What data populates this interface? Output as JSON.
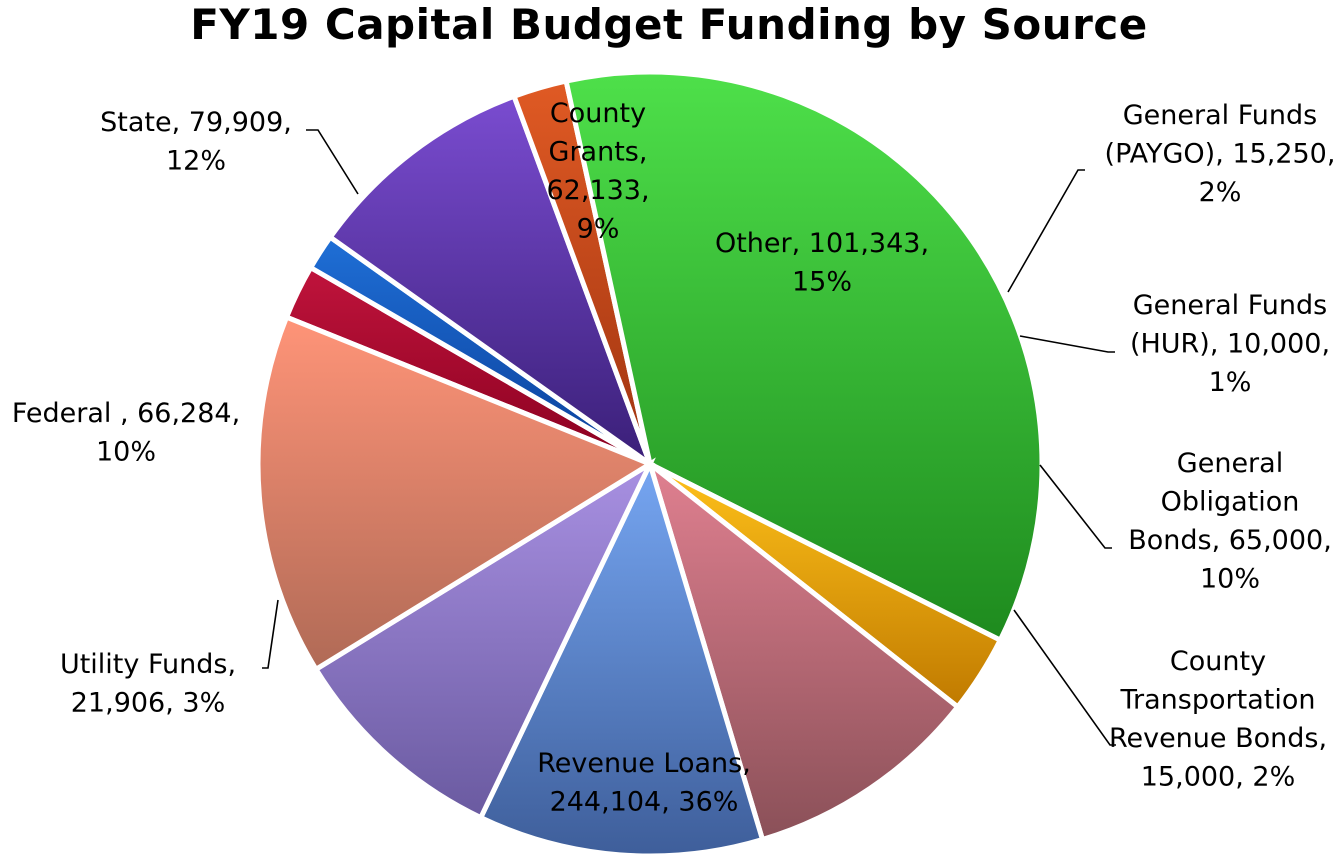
{
  "chart_data": {
    "type": "pie",
    "title": "FY19 Capital Budget Funding by Source",
    "slices": [
      {
        "name": "General Funds (PAYGO)",
        "value": 15250,
        "percent": "2%",
        "label_lines": [
          "General Funds",
          "(PAYGO), 15,250,",
          "2%"
        ],
        "color_light": "#c0143c",
        "color_dark": "#8a0020"
      },
      {
        "name": "General Funds (HUR)",
        "value": 10000,
        "percent": "1%",
        "label_lines": [
          "General Funds",
          "(HUR), 10,000,",
          "1%"
        ],
        "color_light": "#1f6fd6",
        "color_dark": "#0a3f9a"
      },
      {
        "name": "General Obligation Bonds",
        "value": 65000,
        "percent": "10%",
        "label_lines": [
          "General",
          "Obligation",
          "Bonds, 65,000,",
          "10%"
        ],
        "color_light": "#7a4cd0",
        "color_dark": "#3a1f78"
      },
      {
        "name": "County Transportation Revenue Bonds",
        "value": 15000,
        "percent": "2%",
        "label_lines": [
          "County",
          "Transportation",
          "Revenue Bonds,",
          "15,000, 2%"
        ],
        "color_light": "#e05a24",
        "color_dark": "#a03410"
      },
      {
        "name": "Revenue Loans",
        "value": 244104,
        "percent": "36%",
        "label_lines": [
          "Revenue Loans,",
          "244,104, 36%"
        ],
        "color_light": "#4ee04a",
        "color_dark": "#1e8a1e"
      },
      {
        "name": "Utility Funds",
        "value": 21906,
        "percent": "3%",
        "label_lines": [
          "Utility Funds,",
          "21,906, 3%"
        ],
        "color_light": "#ffc21a",
        "color_dark": "#c07a00"
      },
      {
        "name": "Federal",
        "value": 66284,
        "percent": "10%",
        "label_lines": [
          "Federal , 66,284,",
          "10%"
        ],
        "color_light": "#e08090",
        "color_dark": "#8a5058"
      },
      {
        "name": "State",
        "value": 79909,
        "percent": "12%",
        "label_lines": [
          "State, 79,909,",
          "12%"
        ],
        "color_light": "#76a6f2",
        "color_dark": "#3e5e9a"
      },
      {
        "name": "County Grants",
        "value": 62133,
        "percent": "9%",
        "label_lines": [
          "County",
          "Grants,",
          "62,133,",
          "9%"
        ],
        "color_light": "#a890e2",
        "color_dark": "#6a5aa0"
      },
      {
        "name": "Other",
        "value": 101343,
        "percent": "15%",
        "label_lines": [
          "Other, 101,343,",
          "15%"
        ],
        "color_light": "#ff9478",
        "color_dark": "#b06a56"
      }
    ],
    "legend": "none",
    "grid": false
  }
}
